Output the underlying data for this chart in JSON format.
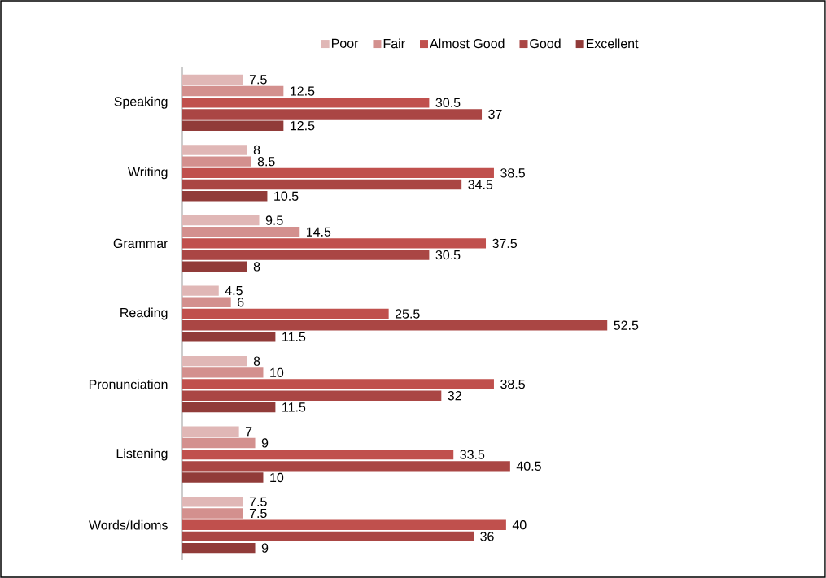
{
  "chart_data": {
    "type": "bar",
    "orientation": "horizontal",
    "data_labels": true,
    "legend": "top",
    "categories": [
      "Speaking",
      "Writing",
      "Grammar",
      "Reading",
      "Pronunciation",
      "Listening",
      "Words/Idioms"
    ],
    "series": [
      {
        "name": "Poor",
        "color": "#e0b7b6",
        "values": [
          7.5,
          8,
          9.5,
          4.5,
          8,
          7,
          7.5
        ]
      },
      {
        "name": "Fair",
        "color": "#d3908e",
        "values": [
          12.5,
          8.5,
          14.5,
          6,
          10,
          9,
          7.5
        ]
      },
      {
        "name": "Almost Good",
        "color": "#c0504d",
        "values": [
          30.5,
          38.5,
          37.5,
          25.5,
          38.5,
          33.5,
          40
        ]
      },
      {
        "name": "Good",
        "color": "#aa4644",
        "values": [
          37,
          34.5,
          30.5,
          52.5,
          32,
          40.5,
          36
        ]
      },
      {
        "name": "Excellent",
        "color": "#913b39",
        "values": [
          12.5,
          10.5,
          8,
          11.5,
          11.5,
          10,
          9
        ]
      }
    ]
  }
}
